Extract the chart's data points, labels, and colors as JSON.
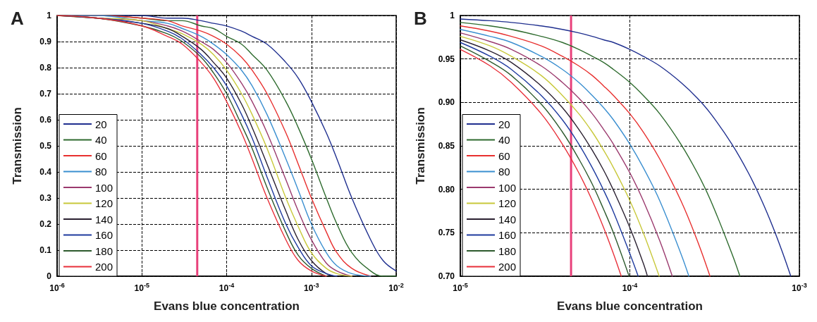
{
  "chart_data": [
    {
      "type": "line",
      "title": "A",
      "xlabel": "Evans blue concentration",
      "ylabel": "Transmission",
      "log": "x",
      "grid": true,
      "legend": "bottom left",
      "marker": "none",
      "line_style": "solid",
      "xlim": [
        1e-06,
        0.01
      ],
      "xticks": [
        {
          "value": 1e-06,
          "label": "10$^{-6}$"
        },
        {
          "value": 1e-05,
          "label": "10$^{-5}$"
        },
        {
          "value": 0.0001,
          "label": "10$^{-4}$"
        },
        {
          "value": 0.001,
          "label": "10$^{-3}$"
        },
        {
          "value": 0.01,
          "label": "10$^{-2}$"
        }
      ],
      "ylim": [
        0,
        1
      ],
      "yticks": [
        0,
        0.1,
        0.2,
        0.3,
        0.4,
        0.5,
        0.6,
        0.7,
        0.8,
        0.9,
        1
      ],
      "ref_lines": [
        {
          "axis": "x",
          "value": 4.5e-05,
          "color": "#e8407a"
        }
      ],
      "x": [
        1e-06,
        3e-06,
        1e-05,
        2e-05,
        3e-05,
        5e-05,
        7e-05,
        0.0001,
        0.00015,
        0.0002,
        0.0003,
        0.0005,
        0.0007,
        0.001,
        0.0015,
        0.002,
        0.003,
        0.005,
        0.007,
        0.01
      ],
      "series": [
        {
          "name": "20",
          "color": "#1f2f8f",
          "values": [
            1,
            1,
            1,
            0.99,
            0.99,
            0.98,
            0.97,
            0.96,
            0.94,
            0.92,
            0.89,
            0.82,
            0.76,
            0.67,
            0.55,
            0.45,
            0.3,
            0.14,
            0.06,
            0.02
          ]
        },
        {
          "name": "40",
          "color": "#2e6b2e",
          "values": [
            1,
            1,
            0.99,
            0.98,
            0.98,
            0.96,
            0.95,
            0.92,
            0.89,
            0.85,
            0.79,
            0.67,
            0.57,
            0.45,
            0.3,
            0.2,
            0.09,
            0.02,
            0,
            0
          ]
        },
        {
          "name": "60",
          "color": "#e8302f",
          "values": [
            1,
            1,
            0.99,
            0.98,
            0.96,
            0.94,
            0.92,
            0.89,
            0.84,
            0.79,
            0.7,
            0.55,
            0.43,
            0.3,
            0.17,
            0.09,
            0.03,
            0,
            null,
            null
          ]
        },
        {
          "name": "80",
          "color": "#3b8fd0",
          "values": [
            1,
            1,
            0.98,
            0.97,
            0.95,
            0.92,
            0.89,
            0.85,
            0.79,
            0.73,
            0.62,
            0.45,
            0.33,
            0.2,
            0.09,
            0.04,
            0.01,
            0,
            null,
            null
          ]
        },
        {
          "name": "100",
          "color": "#9b3a6e",
          "values": [
            1,
            0.99,
            0.98,
            0.96,
            0.94,
            0.9,
            0.87,
            0.82,
            0.74,
            0.67,
            0.55,
            0.37,
            0.25,
            0.14,
            0.05,
            0.02,
            0,
            null,
            null,
            null
          ]
        },
        {
          "name": "120",
          "color": "#c8c83a",
          "values": [
            1,
            0.99,
            0.98,
            0.95,
            0.93,
            0.89,
            0.85,
            0.79,
            0.7,
            0.62,
            0.49,
            0.3,
            0.19,
            0.09,
            0.03,
            0.01,
            0,
            null,
            null,
            null
          ]
        },
        {
          "name": "140",
          "color": "#2a2030",
          "values": [
            1,
            0.99,
            0.97,
            0.95,
            0.92,
            0.87,
            0.82,
            0.76,
            0.66,
            0.57,
            0.43,
            0.25,
            0.14,
            0.06,
            0.01,
            0,
            null,
            null,
            null,
            null
          ]
        },
        {
          "name": "160",
          "color": "#1e3a9e",
          "values": [
            1,
            0.99,
            0.97,
            0.94,
            0.91,
            0.85,
            0.8,
            0.73,
            0.62,
            0.53,
            0.38,
            0.2,
            0.11,
            0.04,
            0.01,
            0,
            null,
            null,
            null,
            null
          ]
        },
        {
          "name": "180",
          "color": "#2d5a2d",
          "values": [
            1,
            0.99,
            0.96,
            0.93,
            0.9,
            0.84,
            0.78,
            0.7,
            0.58,
            0.49,
            0.34,
            0.17,
            0.08,
            0.03,
            0,
            null,
            null,
            null,
            null,
            null
          ]
        },
        {
          "name": "200",
          "color": "#e8303a",
          "values": [
            1,
            0.99,
            0.96,
            0.92,
            0.89,
            0.82,
            0.76,
            0.67,
            0.55,
            0.45,
            0.3,
            0.14,
            0.06,
            0.02,
            0,
            null,
            null,
            null,
            null,
            null
          ]
        }
      ]
    },
    {
      "type": "line",
      "title": "B",
      "xlabel": "Evans blue concentration",
      "ylabel": "Transmission",
      "log": "x",
      "grid": true,
      "legend": "bottom left",
      "marker": "none",
      "line_style": "solid",
      "xlim": [
        1e-05,
        0.001
      ],
      "xticks": [
        {
          "value": 1e-05,
          "label": "10$^{-5}$"
        },
        {
          "value": 0.0001,
          "label": "10$^{-4}$"
        },
        {
          "value": 0.001,
          "label": "10$^{-3}$"
        }
      ],
      "ylim": [
        0.7,
        1
      ],
      "yticks": [
        {
          "value": 0.7,
          "label": "0.70"
        },
        0.75,
        {
          "value": 0.8,
          "label": "0.80"
        },
        0.85,
        {
          "value": 0.9,
          "label": "0.90"
        },
        0.95,
        1
      ],
      "ref_lines": [
        {
          "axis": "x",
          "value": 4.5e-05,
          "color": "#e8407a"
        }
      ],
      "series": [
        {
          "name": "20",
          "color": "#1f2f8f",
          "x": [
            1e-05,
            1.5e-05,
            2e-05,
            3e-05,
            4e-05,
            5e-05,
            6e-05,
            7e-05,
            8e-05,
            0.0001,
            0.00012,
            0.00015,
            0.0002,
            0.00025,
            0.0003,
            0.0004,
            0.0005,
            0.0006,
            0.0007,
            0.0008,
            0.00089
          ],
          "values": [
            0.996,
            0.994,
            0.992,
            0.988,
            0.984,
            0.98,
            0.976,
            0.972,
            0.969,
            0.961,
            0.953,
            0.942,
            0.923,
            0.905,
            0.887,
            0.852,
            0.819,
            0.787,
            0.756,
            0.726,
            0.7
          ]
        },
        {
          "name": "40",
          "color": "#2e6b2e",
          "x": [
            1e-05,
            1.5e-05,
            2e-05,
            3e-05,
            4e-05,
            5e-05,
            6e-05,
            7e-05,
            8e-05,
            0.0001,
            0.00012,
            0.00015,
            0.0002,
            0.00025,
            0.0003,
            0.0004,
            0.000446
          ],
          "values": [
            0.992,
            0.988,
            0.984,
            0.976,
            0.969,
            0.961,
            0.953,
            0.946,
            0.938,
            0.923,
            0.908,
            0.887,
            0.852,
            0.819,
            0.787,
            0.726,
            0.7
          ]
        },
        {
          "name": "60",
          "color": "#e8302f",
          "x": [
            1e-05,
            1.5e-05,
            2e-05,
            3e-05,
            4e-05,
            5e-05,
            6e-05,
            7e-05,
            8e-05,
            0.0001,
            0.00012,
            0.00015,
            0.0002,
            0.00025,
            0.000297
          ],
          "values": [
            0.988,
            0.982,
            0.976,
            0.965,
            0.953,
            0.942,
            0.931,
            0.919,
            0.908,
            0.887,
            0.866,
            0.835,
            0.787,
            0.741,
            0.7
          ]
        },
        {
          "name": "80",
          "color": "#3b8fd0",
          "x": [
            1e-05,
            1.5e-05,
            2e-05,
            3e-05,
            4e-05,
            5e-05,
            6e-05,
            7e-05,
            8e-05,
            0.0001,
            0.00012,
            0.00015,
            0.0002,
            0.000223
          ],
          "values": [
            0.984,
            0.976,
            0.969,
            0.953,
            0.938,
            0.923,
            0.908,
            0.894,
            0.88,
            0.852,
            0.825,
            0.787,
            0.726,
            0.7
          ]
        },
        {
          "name": "100",
          "color": "#9b3a6e",
          "x": [
            1e-05,
            1.5e-05,
            2e-05,
            3e-05,
            4e-05,
            5e-05,
            6e-05,
            7e-05,
            8e-05,
            0.0001,
            0.00012,
            0.00015,
            0.000178
          ],
          "values": [
            0.98,
            0.97,
            0.961,
            0.942,
            0.923,
            0.905,
            0.887,
            0.869,
            0.852,
            0.819,
            0.787,
            0.741,
            0.7
          ]
        },
        {
          "name": "120",
          "color": "#c8c83a",
          "x": [
            1e-05,
            1.5e-05,
            2e-05,
            3e-05,
            4e-05,
            5e-05,
            6e-05,
            7e-05,
            8e-05,
            0.0001,
            0.00012,
            0.000149
          ],
          "values": [
            0.976,
            0.965,
            0.953,
            0.931,
            0.908,
            0.887,
            0.866,
            0.845,
            0.825,
            0.787,
            0.75,
            0.7
          ]
        },
        {
          "name": "140",
          "color": "#2a2030",
          "x": [
            1e-05,
            1.5e-05,
            2e-05,
            3e-05,
            4e-05,
            5e-05,
            6e-05,
            7e-05,
            8e-05,
            0.0001,
            0.00012,
            0.000127
          ],
          "values": [
            0.972,
            0.959,
            0.946,
            0.919,
            0.894,
            0.869,
            0.845,
            0.822,
            0.799,
            0.756,
            0.715,
            0.7
          ]
        },
        {
          "name": "160",
          "color": "#1e3a9e",
          "x": [
            1e-05,
            1.5e-05,
            2e-05,
            3e-05,
            4e-05,
            5e-05,
            6e-05,
            7e-05,
            8e-05,
            0.0001,
            0.000112
          ],
          "values": [
            0.969,
            0.953,
            0.938,
            0.908,
            0.88,
            0.852,
            0.825,
            0.799,
            0.774,
            0.726,
            0.7
          ]
        },
        {
          "name": "180",
          "color": "#2d5a2d",
          "x": [
            1e-05,
            1.5e-05,
            2e-05,
            3e-05,
            4e-05,
            5e-05,
            6e-05,
            7e-05,
            8e-05,
            9.9e-05
          ],
          "values": [
            0.965,
            0.947,
            0.931,
            0.898,
            0.866,
            0.835,
            0.806,
            0.777,
            0.75,
            0.7
          ]
        },
        {
          "name": "200",
          "color": "#e8303a",
          "x": [
            1e-05,
            1.5e-05,
            2e-05,
            3e-05,
            4e-05,
            5e-05,
            6e-05,
            7e-05,
            8e-05,
            8.9e-05
          ],
          "values": [
            0.961,
            0.942,
            0.923,
            0.887,
            0.852,
            0.819,
            0.787,
            0.756,
            0.726,
            0.7
          ]
        }
      ]
    }
  ]
}
